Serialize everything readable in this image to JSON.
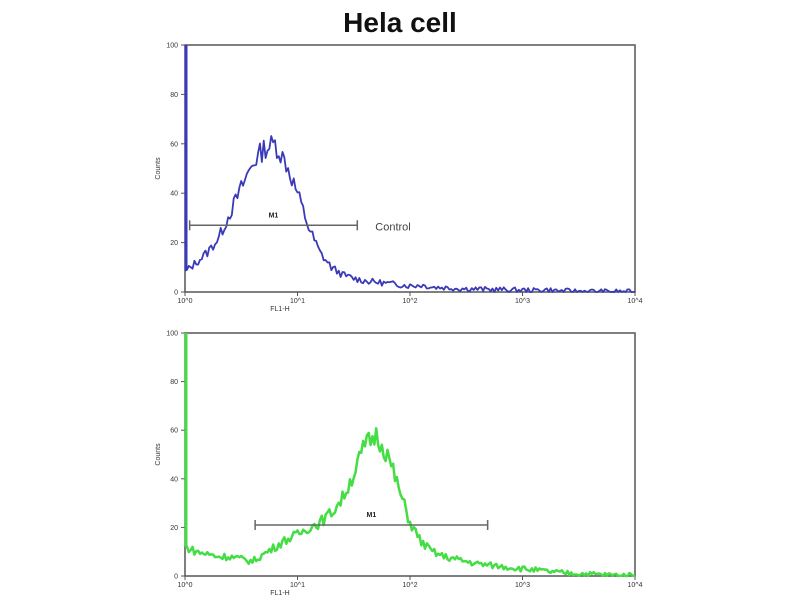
{
  "chart_data": [
    {
      "type": "line",
      "title": "Hela cell",
      "xlabel": "FL1-H",
      "ylabel": "Counts",
      "xscale": "log",
      "xlim": [
        1,
        10000
      ],
      "ylim": [
        0,
        100
      ],
      "xticks": [
        "10^0",
        "10^1",
        "10^2",
        "10^3",
        "10^4"
      ],
      "yticks": [
        "0",
        "20",
        "40",
        "60",
        "80",
        "100"
      ],
      "grid": false,
      "series_color": "#3a3ab8",
      "annotation": "Control",
      "marker": {
        "label": "M1",
        "x_range": [
          1.1,
          34
        ],
        "y": 27
      },
      "x": [
        1,
        1.26,
        1.58,
        2,
        2.51,
        3.16,
        3.98,
        5.01,
        6.31,
        7.94,
        10,
        12.6,
        15.8,
        20,
        25.1,
        31.6,
        39.8,
        50.1,
        63.1,
        79.4,
        100,
        126,
        158,
        200,
        251,
        316,
        398,
        501,
        631,
        794,
        1000,
        1259,
        1585,
        1995,
        2512,
        3162,
        3981,
        5012,
        6310,
        7943,
        10000
      ],
      "values": [
        8,
        12,
        16,
        22,
        32,
        42,
        52,
        58,
        60,
        52,
        40,
        26,
        16,
        10,
        7,
        5.5,
        4.5,
        4,
        3.5,
        3,
        2.5,
        2.8,
        2,
        1.8,
        1.5,
        1.3,
        1.2,
        1,
        1,
        0.8,
        0.8,
        0.6,
        1,
        0.5,
        0.4,
        0.3,
        0.3,
        0.2,
        0.2,
        0.1,
        0.1
      ]
    },
    {
      "type": "line",
      "xlabel": "FL1-H",
      "ylabel": "Counts",
      "xscale": "log",
      "xlim": [
        1,
        10000
      ],
      "ylim": [
        0,
        100
      ],
      "xticks": [
        "10^0",
        "10^1",
        "10^2",
        "10^3",
        "10^4"
      ],
      "yticks": [
        "0",
        "20",
        "40",
        "60",
        "80",
        "100"
      ],
      "grid": false,
      "series_color": "#44dd44",
      "marker": {
        "label": "M1",
        "x_range": [
          4.2,
          490
        ],
        "y": 21
      },
      "x": [
        1,
        1.26,
        1.58,
        2,
        2.51,
        3.16,
        3.98,
        5.01,
        6.31,
        7.94,
        10,
        12.6,
        15.8,
        20,
        25.1,
        31.6,
        39.8,
        50.1,
        63.1,
        79.4,
        100,
        126,
        158,
        200,
        251,
        316,
        398,
        501,
        631,
        794,
        1000,
        1259,
        1585,
        1995,
        2512,
        3162,
        3981,
        5012,
        6310,
        7943,
        10000
      ],
      "values": [
        12,
        10,
        9,
        8,
        8,
        7,
        6,
        9,
        12,
        15,
        17,
        20,
        22,
        26,
        32,
        42,
        54,
        58,
        50,
        36,
        22,
        14,
        10,
        8,
        7,
        6,
        5,
        4.5,
        4,
        3.5,
        3,
        2.5,
        2,
        1.5,
        1.2,
        1,
        0.8,
        0.6,
        0.4,
        0.3,
        0.2
      ]
    }
  ]
}
